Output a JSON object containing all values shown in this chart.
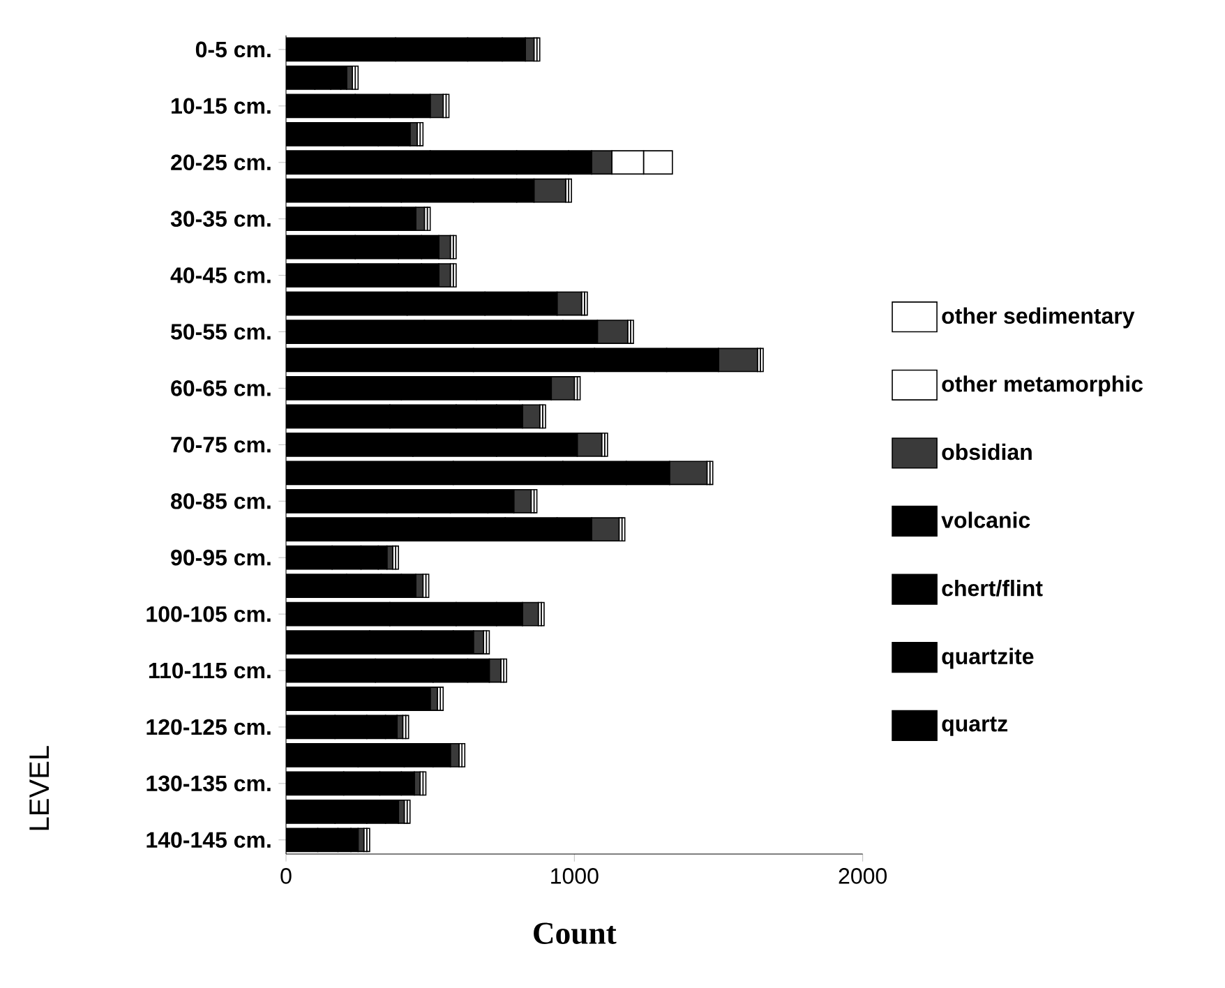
{
  "chart_data": {
    "type": "bar",
    "orientation": "horizontal",
    "stacked": true,
    "xlabel": "Count",
    "ylabel": "LEVEL",
    "categories": [
      "0-5 cm.",
      null,
      "10-15 cm.",
      null,
      "20-25 cm.",
      null,
      "30-35 cm.",
      null,
      "40-45 cm.",
      null,
      "50-55 cm.",
      null,
      "60-65 cm.",
      null,
      "70-75 cm.",
      null,
      "80-85 cm.",
      null,
      "90-95 cm.",
      null,
      "100-105 cm.",
      null,
      "110-115 cm.",
      null,
      "120-125 cm.",
      null,
      "130-135 cm.",
      null,
      "140-145 cm."
    ],
    "xlim": [
      0,
      2000
    ],
    "xticks": [
      0,
      1000,
      2000
    ],
    "legend": "right",
    "grid": false,
    "series": [
      {
        "name": "quartz",
        "color": "#000000",
        "values": [
          380,
          100,
          240,
          200,
          500,
          400,
          220,
          240,
          250,
          420,
          480,
          650,
          400,
          360,
          440,
          580,
          350,
          460,
          160,
          210,
          360,
          290,
          310,
          230,
          170,
          250,
          200,
          170,
          110
        ]
      },
      {
        "name": "quartzite",
        "color": "#000000",
        "values": [
          250,
          55,
          120,
          120,
          300,
          250,
          110,
          150,
          140,
          270,
          300,
          420,
          260,
          230,
          290,
          380,
          220,
          300,
          100,
          120,
          230,
          180,
          200,
          140,
          110,
          160,
          125,
          110,
          70
        ]
      },
      {
        "name": "chert/flint",
        "color": "#000000",
        "values": [
          120,
          35,
          80,
          70,
          180,
          150,
          70,
          80,
          80,
          150,
          180,
          250,
          150,
          140,
          170,
          220,
          130,
          180,
          60,
          70,
          140,
          110,
          120,
          80,
          65,
          100,
          75,
          65,
          45
        ]
      },
      {
        "name": "volcanic",
        "color": "#000000",
        "values": [
          80,
          20,
          60,
          40,
          80,
          60,
          50,
          60,
          60,
          100,
          120,
          180,
          110,
          90,
          110,
          150,
          90,
          120,
          30,
          50,
          90,
          70,
          75,
          50,
          40,
          60,
          45,
          45,
          25
        ]
      },
      {
        "name": "obsidian",
        "color": "#3a3a3a",
        "values": [
          30,
          20,
          45,
          25,
          70,
          110,
          30,
          40,
          40,
          85,
          105,
          135,
          80,
          60,
          85,
          130,
          60,
          95,
          20,
          25,
          55,
          35,
          40,
          25,
          20,
          30,
          20,
          20,
          20
        ]
      },
      {
        "name": "other metamorphic",
        "color": "#ffffff",
        "values": [
          10,
          10,
          10,
          10,
          110,
          10,
          10,
          10,
          10,
          10,
          10,
          10,
          10,
          10,
          10,
          10,
          10,
          10,
          10,
          10,
          10,
          10,
          10,
          10,
          10,
          10,
          10,
          10,
          10
        ]
      },
      {
        "name": "other sedimentary",
        "color": "#ffffff",
        "values": [
          10,
          10,
          10,
          10,
          100,
          10,
          10,
          10,
          10,
          10,
          10,
          10,
          10,
          10,
          10,
          10,
          10,
          10,
          10,
          10,
          10,
          10,
          10,
          10,
          10,
          10,
          10,
          10,
          10
        ]
      }
    ]
  }
}
